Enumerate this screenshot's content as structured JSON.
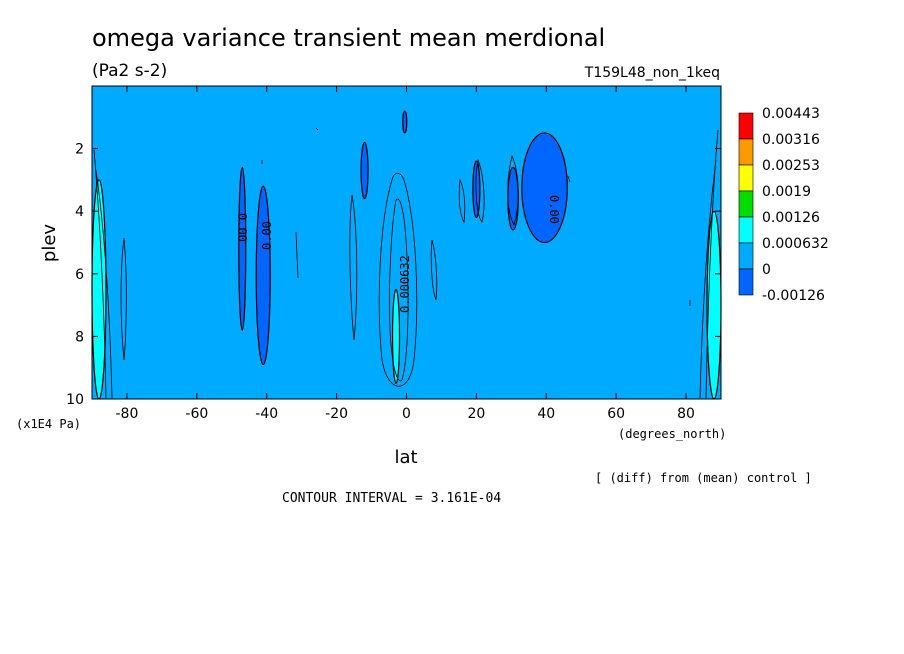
{
  "chart_data": {
    "type": "heatmap",
    "title": "omega variance transient mean merdional",
    "subtitle": "(Pa2 s-2)",
    "run_label": "T159L48_non_1keq",
    "xlabel": "lat",
    "x_units": "(degrees_north)",
    "ylabel": "plev",
    "y_units": "(x1E4 Pa)",
    "xlim": [
      -90,
      90
    ],
    "ylim": [
      10,
      0
    ],
    "x_ticks": [
      "-80",
      "-60",
      "-40",
      "-20",
      "0",
      "20",
      "40",
      "60",
      "80"
    ],
    "x_tick_values": [
      -80,
      -60,
      -40,
      -20,
      0,
      20,
      40,
      60,
      80
    ],
    "y_ticks": [
      "2",
      "4",
      "6",
      "8",
      "10"
    ],
    "y_tick_values": [
      2,
      4,
      6,
      8,
      10
    ],
    "note": "[ (diff) from (mean) control ]",
    "contour_interval": "CONTOUR INTERVAL = 3.161E-04",
    "contour_labels": [
      "0.00",
      "0.00",
      "0.00",
      "0.000632"
    ],
    "background_color": "#00aaff",
    "colorbar": {
      "labels": [
        "0.00443",
        "0.00316",
        "0.00253",
        "0.0019",
        "0.00126",
        "0.000632",
        "0",
        "-0.00126"
      ],
      "colors": [
        "#ff0000",
        "#ff9900",
        "#ffff00",
        "#00dd00",
        "#00ffff",
        "#00aaff",
        "#0066ff"
      ]
    },
    "regions": [
      {
        "level": "negative",
        "color": "#0066ff",
        "lat_range": [
          -48,
          -46
        ],
        "plev_range": [
          2.6,
          7.8
        ]
      },
      {
        "level": "negative",
        "color": "#0066ff",
        "lat_range": [
          -43,
          -39
        ],
        "plev_range": [
          3.2,
          8.9
        ]
      },
      {
        "level": "negative",
        "color": "#0066ff",
        "lat_range": [
          -13,
          -11
        ],
        "plev_range": [
          1.8,
          3.6
        ]
      },
      {
        "level": "negative",
        "color": "#0066ff",
        "lat_range": [
          -1,
          0
        ],
        "plev_range": [
          0.8,
          1.5
        ]
      },
      {
        "level": "negative",
        "color": "#0066ff",
        "lat_range": [
          19,
          21
        ],
        "plev_range": [
          2.4,
          4.2
        ]
      },
      {
        "level": "negative",
        "color": "#0066ff",
        "lat_range": [
          29,
          32
        ],
        "plev_range": [
          2.6,
          4.6
        ]
      },
      {
        "level": "negative",
        "color": "#0066ff",
        "lat_range": [
          33,
          46
        ],
        "plev_range": [
          1.5,
          5.0
        ]
      },
      {
        "level": "positive",
        "color": "#00ffff",
        "lat_range": [
          -4,
          -2
        ],
        "plev_range": [
          6.5,
          9.5
        ]
      },
      {
        "level": "positive",
        "color": "#00ffff",
        "lat_range": [
          -90,
          -86
        ],
        "plev_range": [
          3.0,
          10.0
        ]
      },
      {
        "level": "positive",
        "color": "#00ffff",
        "lat_range": [
          86,
          90
        ],
        "plev_range": [
          4.0,
          10.0
        ]
      }
    ]
  }
}
